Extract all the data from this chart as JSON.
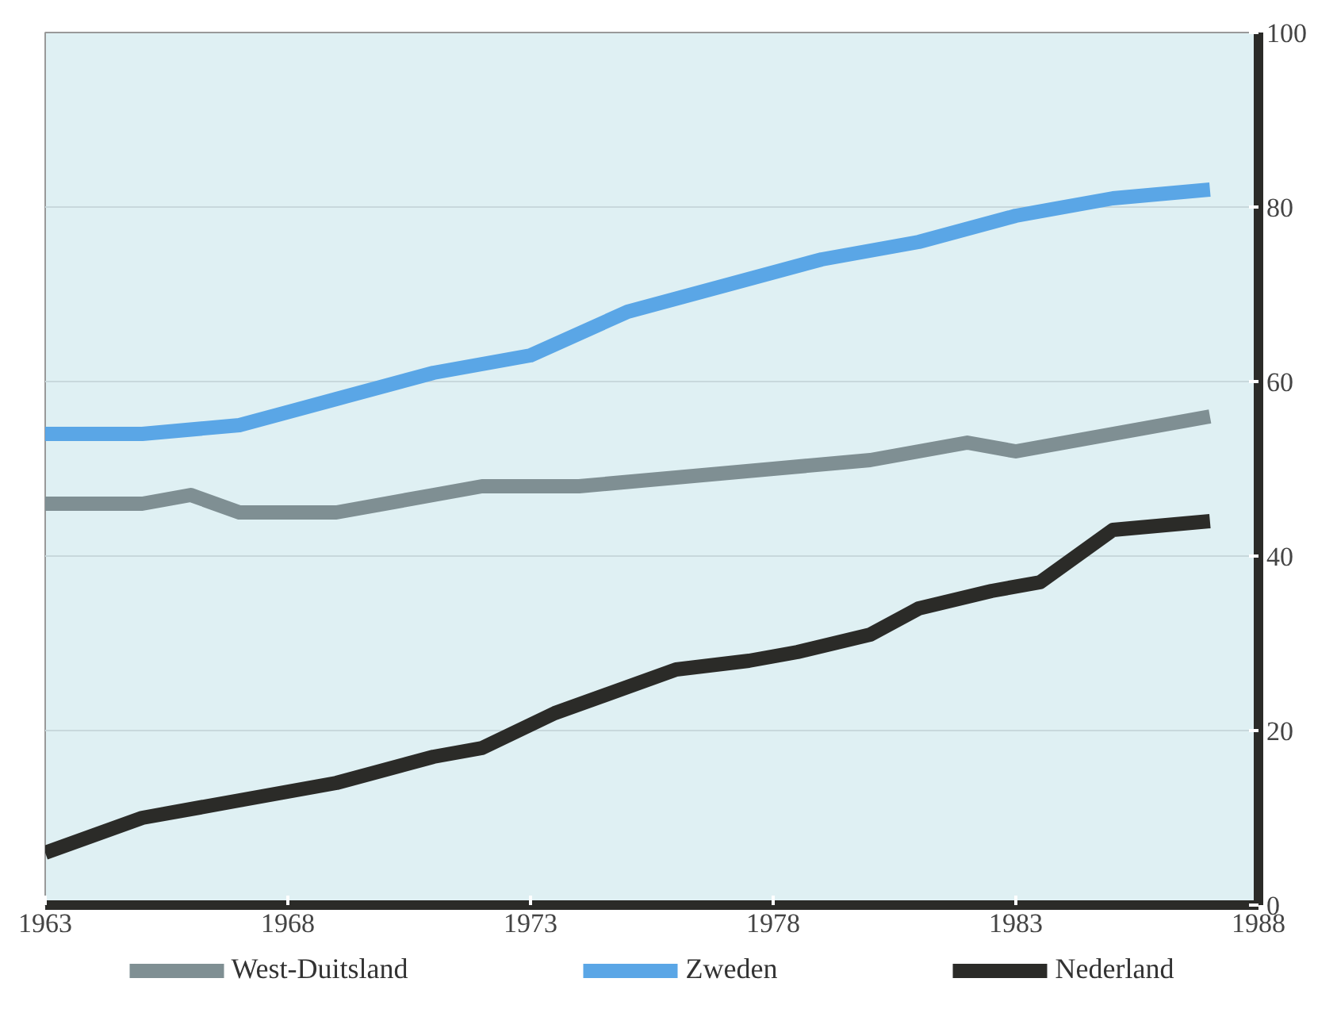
{
  "chart_data": {
    "type": "line",
    "xlim": [
      1963,
      1988
    ],
    "xticks": [
      1963,
      1968,
      1973,
      1978,
      1983,
      1988
    ],
    "ylim": [
      0,
      100
    ],
    "yticks": [
      0,
      20,
      40,
      60,
      80,
      100
    ],
    "grid": "y",
    "legend": "bottom",
    "line_style": "solid",
    "series": [
      {
        "name": "West-Duitsland",
        "color": "#7f8f93",
        "x": [
          1963,
          1965,
          1966,
          1967,
          1969,
          1971,
          1972,
          1974,
          1976,
          1978,
          1980,
          1982,
          1983,
          1985,
          1987
        ],
        "values": [
          46,
          46,
          47,
          45,
          45,
          47,
          48,
          48,
          49,
          50,
          51,
          53,
          52,
          54,
          56
        ]
      },
      {
        "name": "Zweden",
        "color": "#5aa6e6",
        "x": [
          1963,
          1965,
          1967,
          1969,
          1971,
          1973,
          1975,
          1977,
          1979,
          1981,
          1983,
          1985,
          1987
        ],
        "values": [
          54,
          54,
          55,
          58,
          61,
          63,
          68,
          71,
          74,
          76,
          79,
          81,
          82
        ]
      },
      {
        "name": "Nederland",
        "color": "#2b2b28",
        "x": [
          1963,
          1965,
          1967,
          1969,
          1971,
          1972,
          1973.5,
          1976,
          1977.5,
          1978.5,
          1980,
          1981,
          1982.5,
          1983.5,
          1985,
          1987
        ],
        "values": [
          6,
          10,
          12,
          14,
          17,
          18,
          22,
          27,
          28,
          29,
          31,
          34,
          36,
          37,
          43,
          44
        ]
      }
    ]
  }
}
